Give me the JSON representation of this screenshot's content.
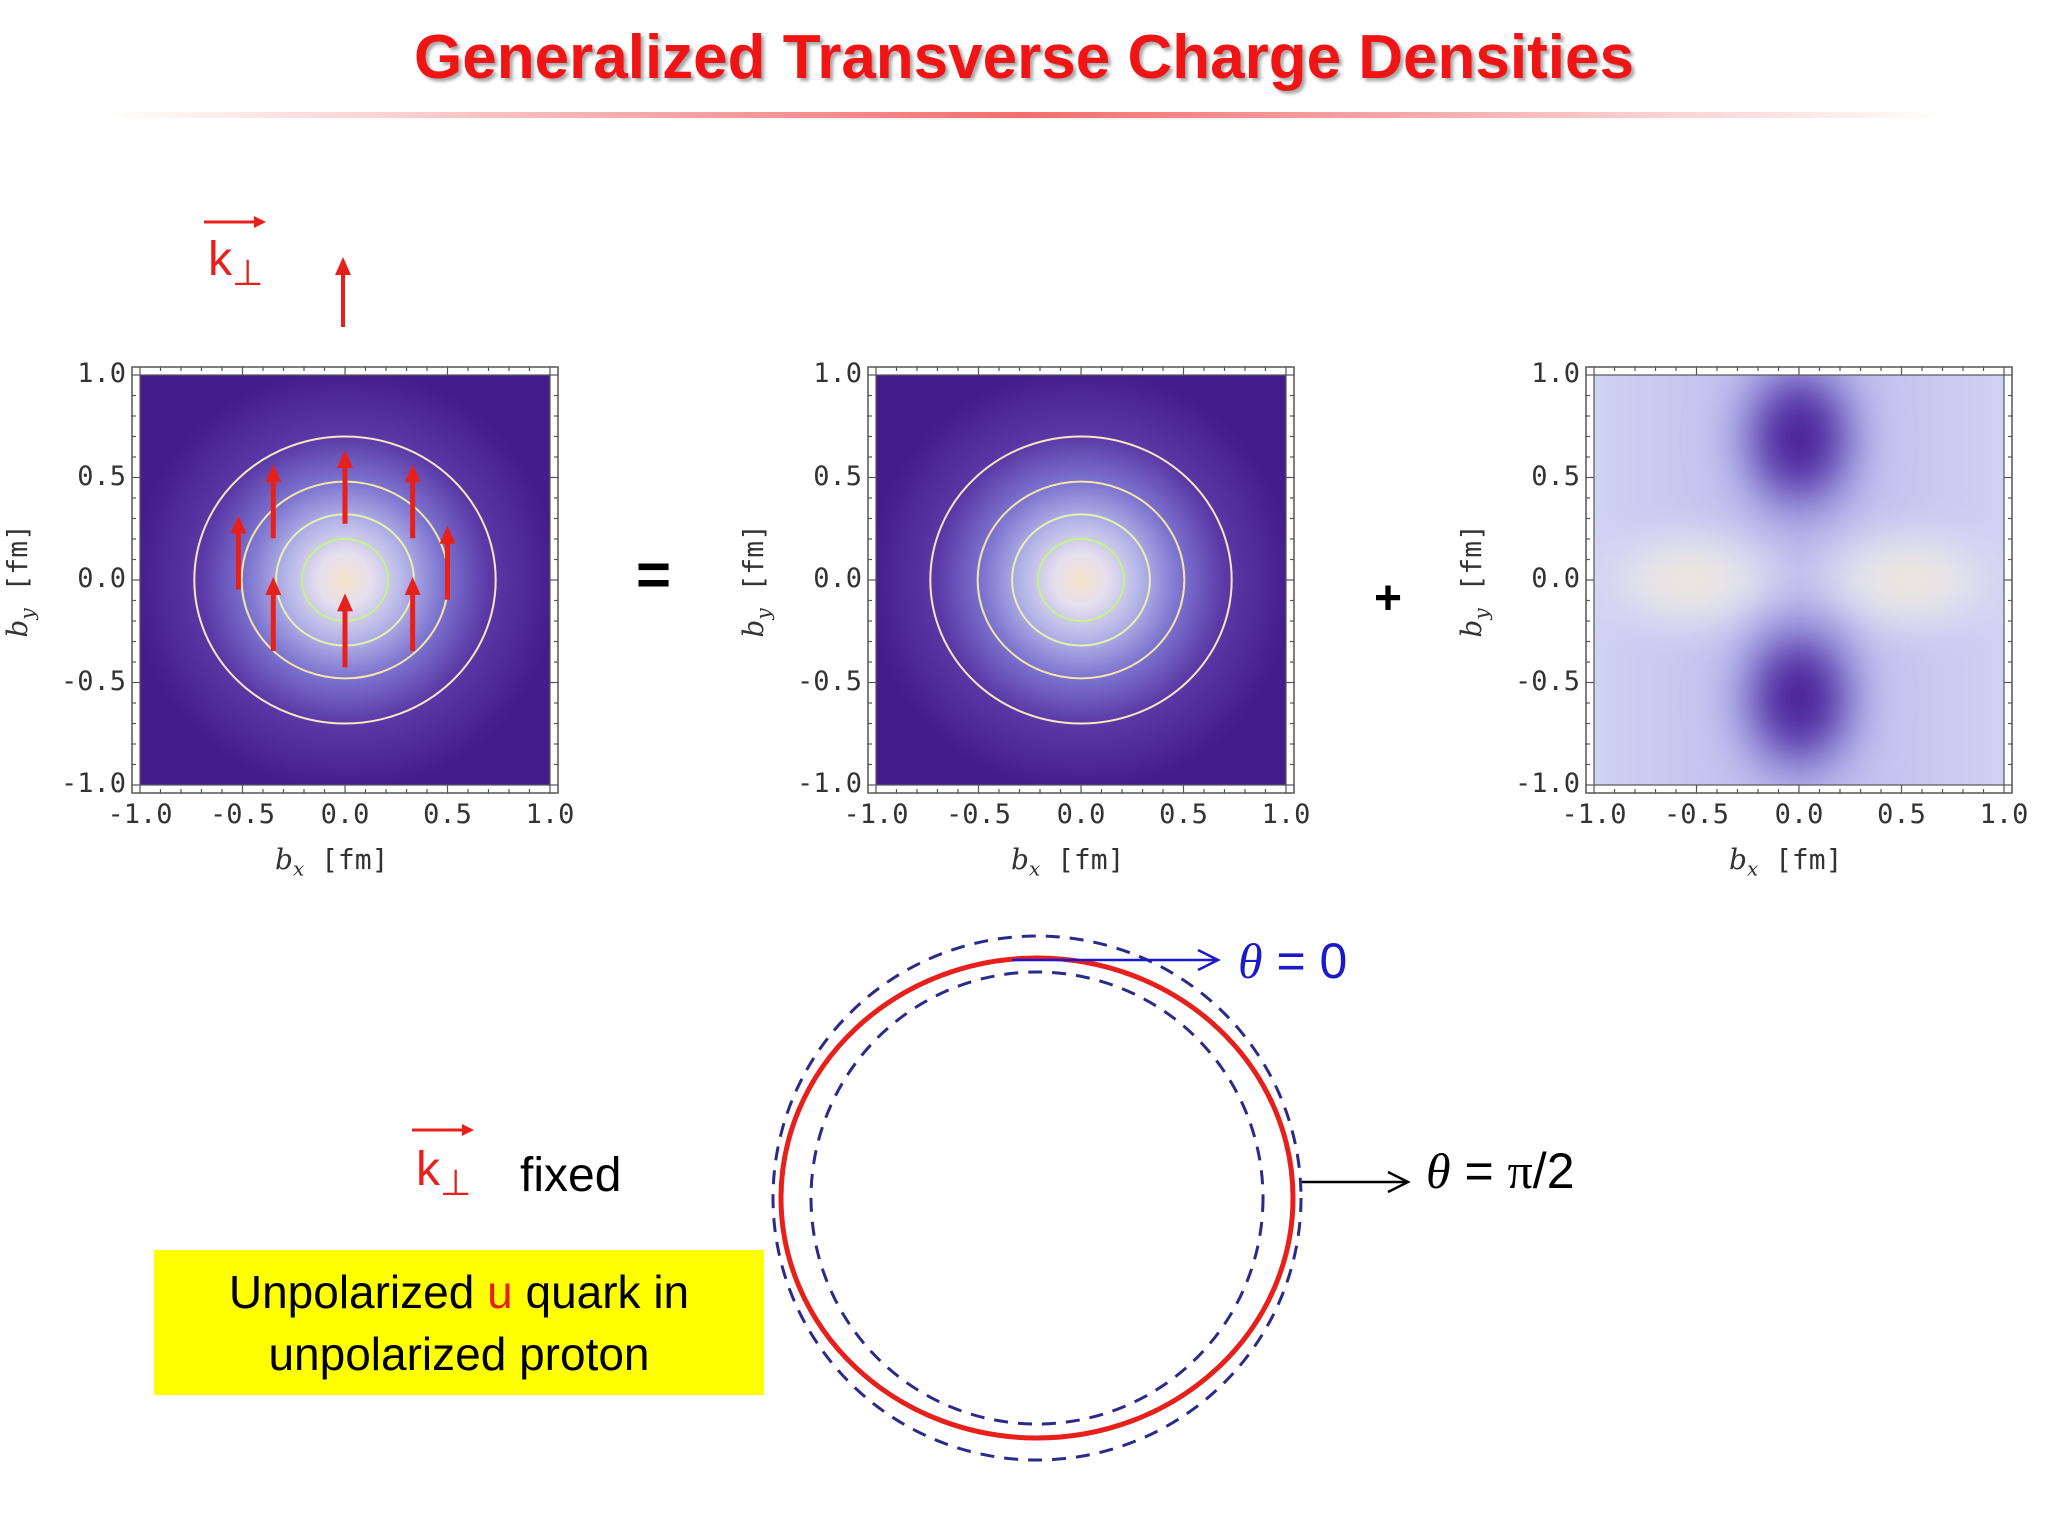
{
  "title": "Generalized Transverse Charge Densities",
  "operators": {
    "equals": "=",
    "plus": "+"
  },
  "kvec": {
    "letter": "k",
    "sub": "⊥",
    "fixed": "fixed"
  },
  "note": {
    "line1_pre": "Unpolarized ",
    "quark": "u",
    "line1_post": " quark in",
    "line2": "unpolarized proton"
  },
  "theta": {
    "zero": {
      "symbol": "θ",
      "rest": " = 0"
    },
    "half_pi": {
      "symbol": "θ",
      "rest": " = ",
      "pi": "π",
      "tail": "/2"
    }
  },
  "panels": {
    "ticks": [
      "-1.0",
      "-0.5",
      "0.0",
      "0.5",
      "1.0"
    ],
    "xlabel": {
      "var": "b",
      "sub": "x",
      "unit": "[fm]"
    },
    "ylabel": {
      "var": "b",
      "sub": "y",
      "unit": "[fm]"
    },
    "contour_levels_fm": [
      0.2,
      0.32,
      0.48,
      0.7
    ]
  },
  "icons": [
    "up-arrow-icon",
    "right-arrow-icon",
    "vector-arrow-icon"
  ],
  "colors": {
    "title": "#f01414",
    "arrows": "#e8201c",
    "box": "#ffff00",
    "theta_zero": "#1a1acc",
    "dashed_circle": "#2a2a8a"
  }
}
